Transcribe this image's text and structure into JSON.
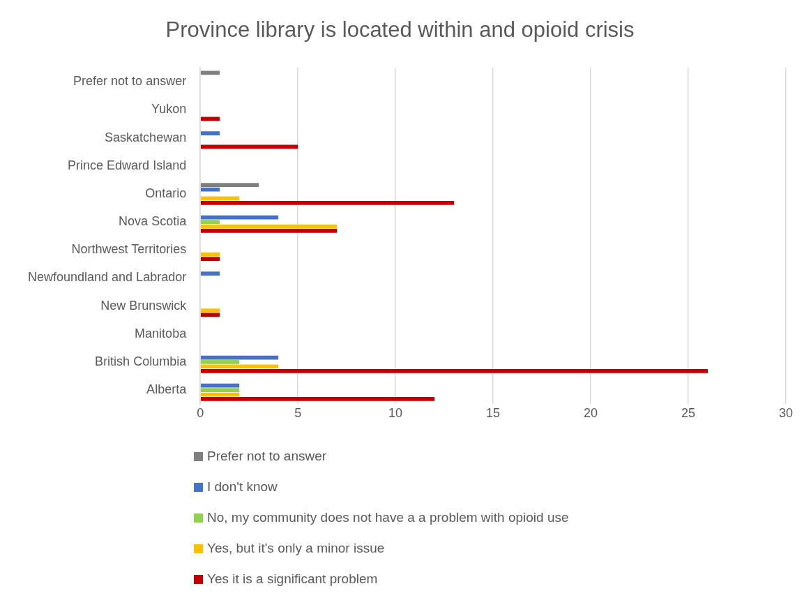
{
  "chart_data": {
    "type": "bar",
    "orientation": "horizontal",
    "title": "Province library is located within and opioid crisis",
    "categories": [
      "Prefer not to answer",
      "Yukon",
      "Saskatchewan",
      "Prince Edward Island",
      "Ontario",
      "Nova Scotia",
      "Northwest Territories",
      "Newfoundland and Labrador",
      "New Brunswick",
      "Manitoba",
      "British Columbia",
      "Alberta"
    ],
    "series": [
      {
        "name": "Prefer not to answer",
        "color": "#7f7f7f",
        "values": [
          1,
          null,
          null,
          null,
          3,
          null,
          null,
          null,
          null,
          null,
          null,
          null
        ]
      },
      {
        "name": "I don't know",
        "color": "#4472c4",
        "values": [
          null,
          null,
          1,
          null,
          1,
          4,
          null,
          1,
          null,
          null,
          4,
          2
        ]
      },
      {
        "name": "No, my community does not have a a problem with opioid use",
        "color": "#92d050",
        "values": [
          null,
          null,
          null,
          null,
          null,
          1,
          null,
          null,
          null,
          null,
          2,
          2
        ]
      },
      {
        "name": "Yes, but it's only a minor issue",
        "color": "#ffc000",
        "values": [
          null,
          null,
          null,
          null,
          2,
          7,
          1,
          null,
          1,
          null,
          4,
          2
        ]
      },
      {
        "name": "Yes it is a significant problem",
        "color": "#c00000",
        "values": [
          null,
          1,
          5,
          null,
          13,
          7,
          1,
          null,
          1,
          null,
          26,
          12
        ]
      }
    ],
    "xlim": [
      0,
      30
    ],
    "xticks": [
      0,
      5,
      10,
      15,
      20,
      25,
      30
    ],
    "grid": "x",
    "legend": "bottom"
  }
}
